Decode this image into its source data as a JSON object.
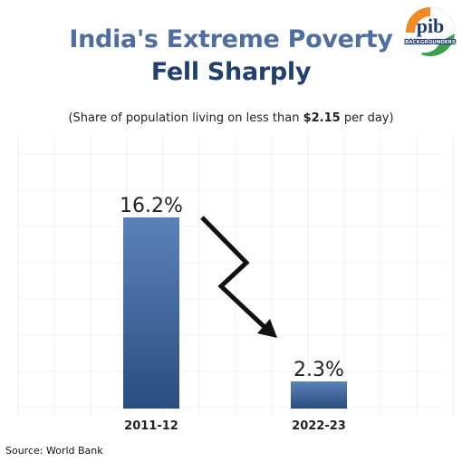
{
  "header": {
    "title_line1": "India's Extreme Poverty",
    "title_line2": "Fell Sharply",
    "subtitle_prefix": "(Share of population living on less than ",
    "subtitle_amount": "$2.15",
    "subtitle_suffix": " per day)"
  },
  "logo": {
    "text": "pib",
    "subtext": "BACKGROUNDERS"
  },
  "footer": {
    "source": "Source: World Bank"
  },
  "colors": {
    "bar_top": "#5c82bb",
    "bar_bottom": "#2b4c7e",
    "title_light": "#4f6e9f",
    "title_dark": "#21406f"
  },
  "chart_data": {
    "type": "bar",
    "title": "India's Extreme Poverty Fell Sharply",
    "subtitle": "(Share of population living on less than $2.15 per day)",
    "categories": [
      "2011-12",
      "2022-23"
    ],
    "values": [
      16.2,
      2.3
    ],
    "value_labels": [
      "16.2%",
      "2.3%"
    ],
    "ylim": [
      0,
      16.2
    ],
    "grid": true,
    "annotations": [
      "downward arrow between bars"
    ]
  }
}
